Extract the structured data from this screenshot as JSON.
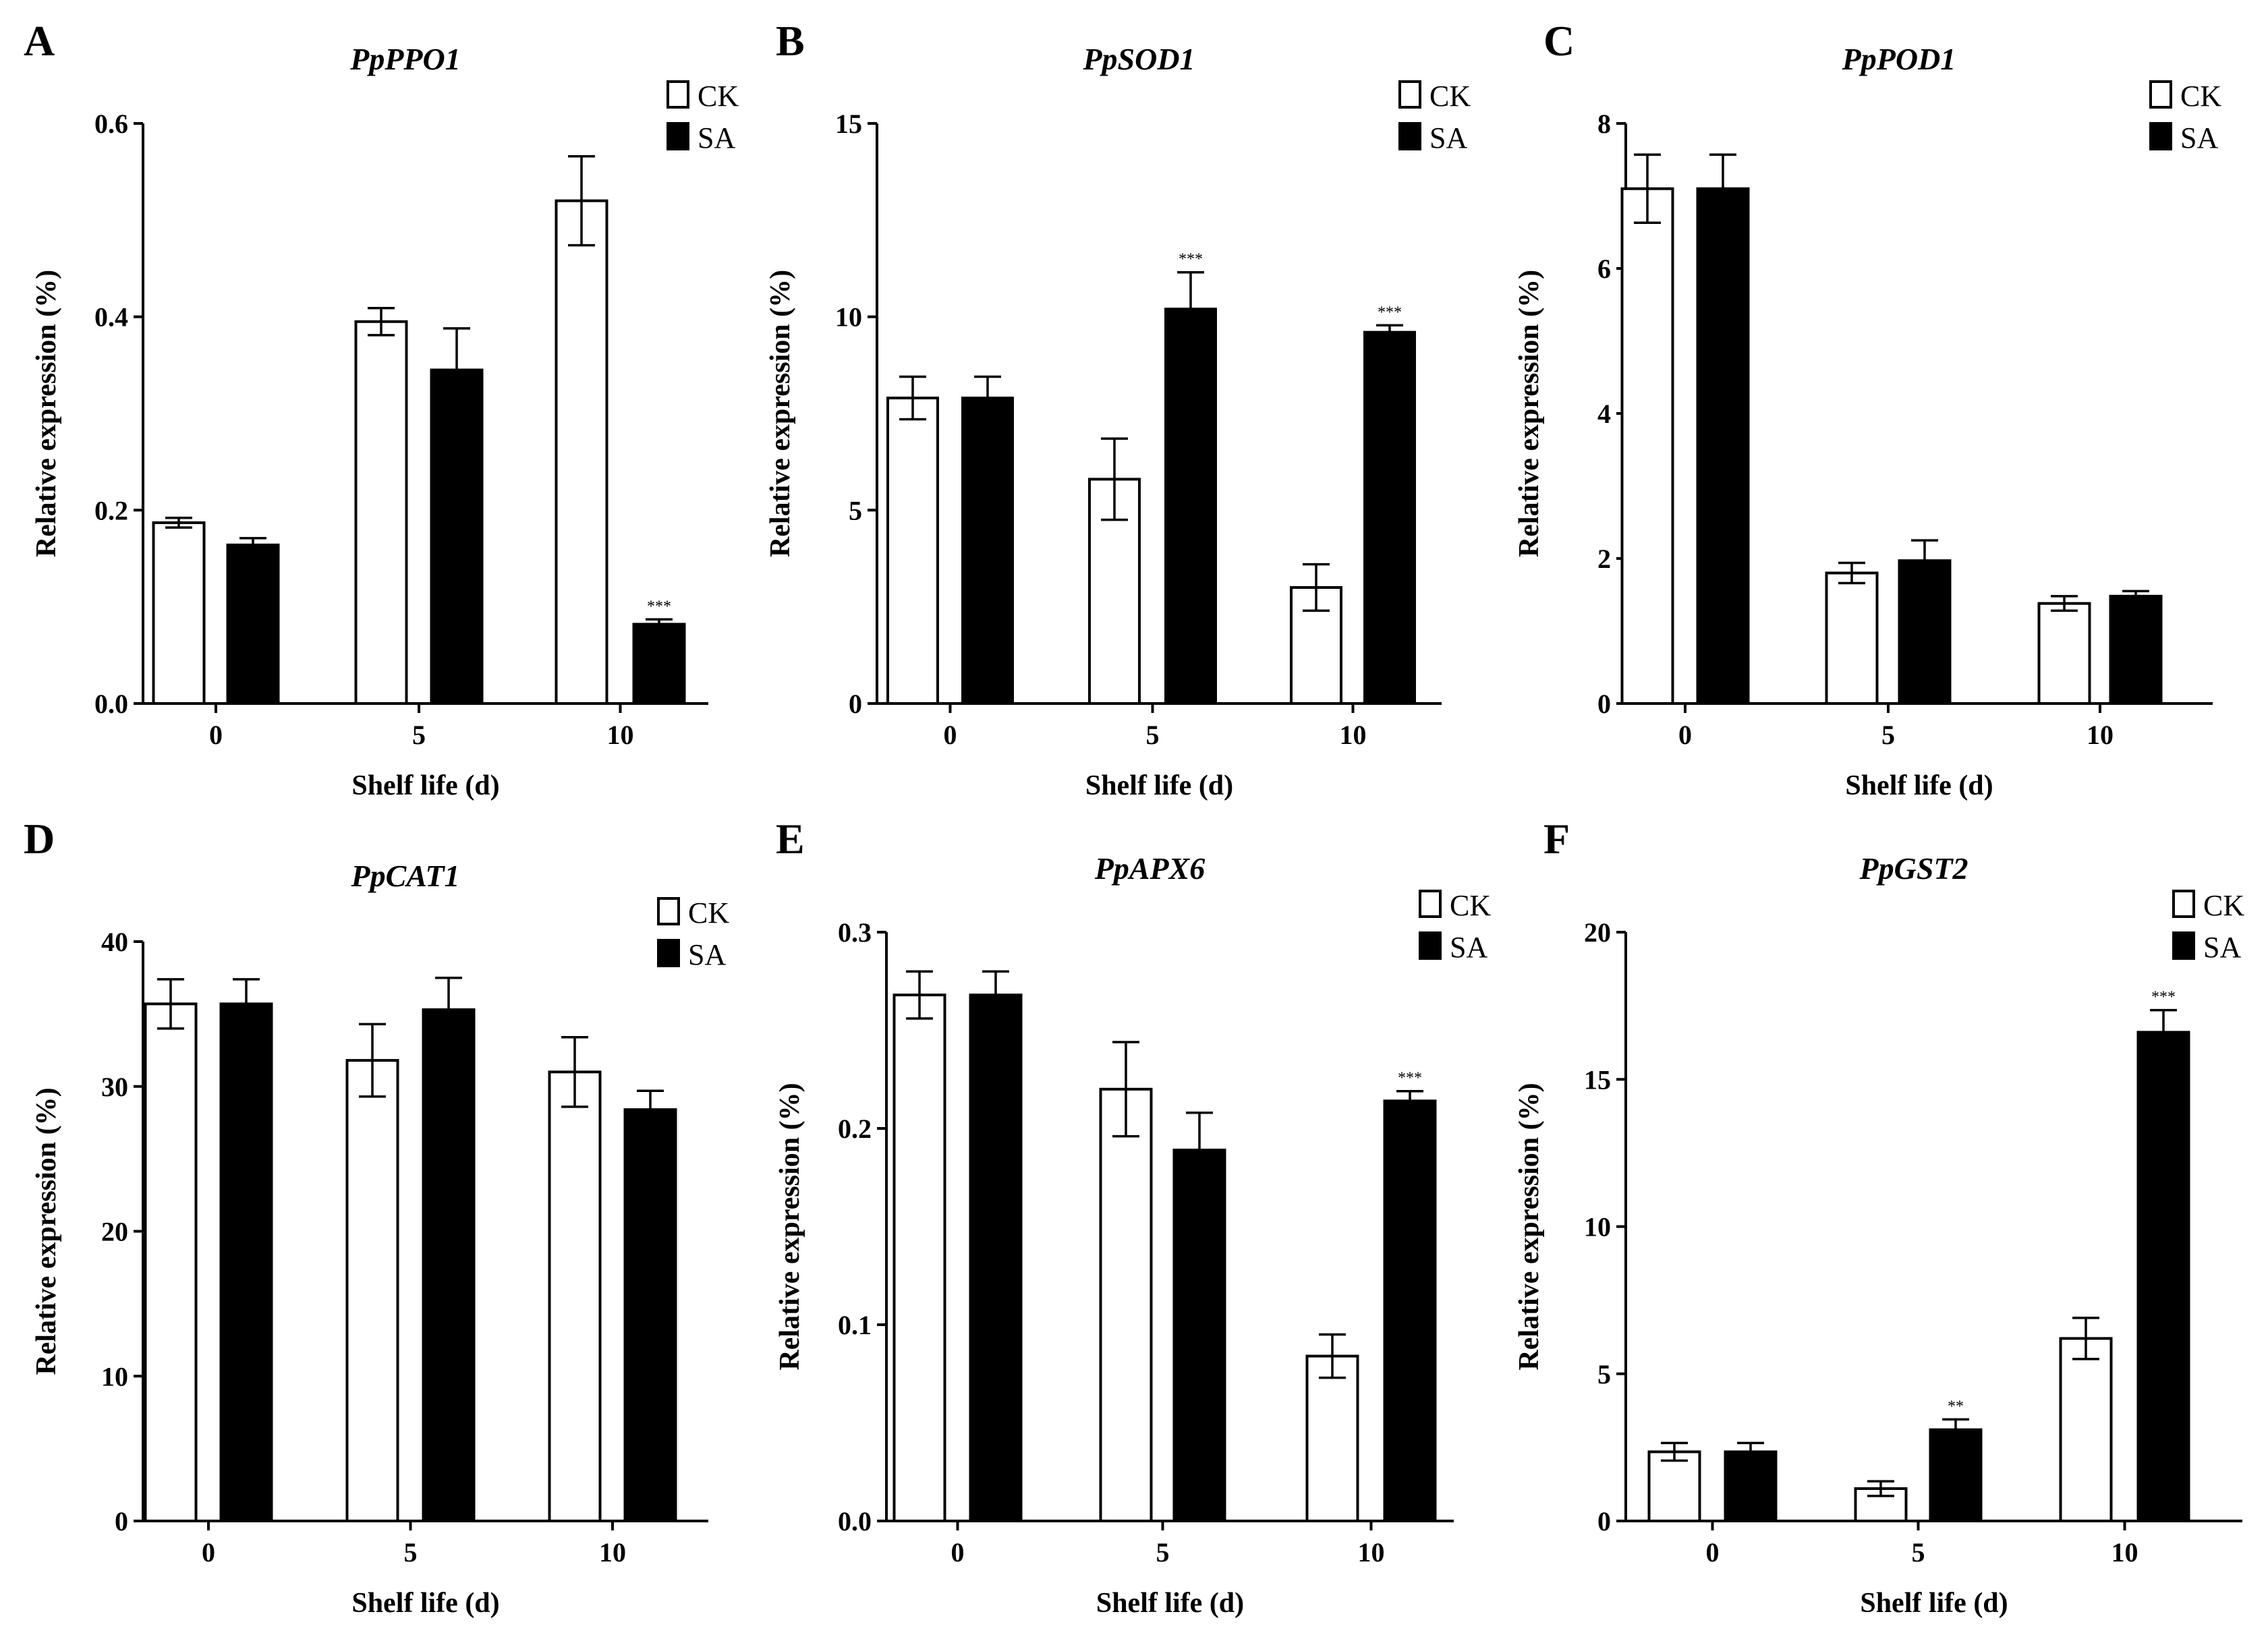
{
  "figure": {
    "legend": {
      "ck": "CK",
      "sa": "SA"
    },
    "x_axis_label": "Shelf life (d)",
    "y_axis_label": "Relative expression (%)"
  },
  "chart_data": [
    {
      "panel": "A",
      "type": "bar",
      "title": "PpPPO1",
      "xlabel": "Shelf life (d)",
      "ylabel": "Relative expression (%)",
      "categories": [
        "0",
        "5",
        "10"
      ],
      "ylim": [
        0,
        0.6
      ],
      "yticks": [
        "0.0",
        "0.2",
        "0.4",
        "0.6"
      ],
      "ytick_values": [
        0,
        0.2,
        0.4,
        0.6
      ],
      "series": [
        {
          "name": "CK",
          "values": [
            0.187,
            0.395,
            0.52
          ],
          "errors": [
            0.005,
            0.014,
            0.046
          ],
          "sig": [
            "",
            "",
            ""
          ]
        },
        {
          "name": "SA",
          "values": [
            0.164,
            0.345,
            0.082
          ],
          "errors": [
            0.007,
            0.043,
            0.005
          ],
          "sig": [
            "",
            "",
            "***"
          ]
        }
      ],
      "legend_position": "top-right"
    },
    {
      "panel": "B",
      "type": "bar",
      "title": "PpSOD1",
      "xlabel": "Shelf life (d)",
      "ylabel": "Relative expression (%)",
      "categories": [
        "0",
        "5",
        "10"
      ],
      "ylim": [
        0,
        15
      ],
      "yticks": [
        "0",
        "5",
        "10",
        "15"
      ],
      "ytick_values": [
        0,
        5,
        10,
        15
      ],
      "series": [
        {
          "name": "CK",
          "values": [
            7.9,
            5.8,
            3.0
          ],
          "errors": [
            0.55,
            1.05,
            0.6
          ],
          "sig": [
            "",
            "",
            ""
          ]
        },
        {
          "name": "SA",
          "values": [
            7.9,
            10.2,
            9.6
          ],
          "errors": [
            0.55,
            0.95,
            0.18
          ],
          "sig": [
            "",
            "***",
            "***"
          ]
        }
      ],
      "legend_position": "top-right"
    },
    {
      "panel": "C",
      "type": "bar",
      "title": "PpPOD1",
      "xlabel": "Shelf life (d)",
      "ylabel": "Relative expression (%)",
      "categories": [
        "0",
        "5",
        "10"
      ],
      "ylim": [
        0,
        8
      ],
      "yticks": [
        "0",
        "2",
        "4",
        "6",
        "8"
      ],
      "ytick_values": [
        0,
        2,
        4,
        6,
        8
      ],
      "series": [
        {
          "name": "CK",
          "values": [
            7.1,
            1.8,
            1.38
          ],
          "errors": [
            0.47,
            0.14,
            0.1
          ],
          "sig": [
            "",
            "",
            ""
          ]
        },
        {
          "name": "SA",
          "values": [
            7.1,
            1.97,
            1.48
          ],
          "errors": [
            0.47,
            0.28,
            0.07
          ],
          "sig": [
            "",
            "",
            ""
          ]
        }
      ],
      "legend_position": "top-right"
    },
    {
      "panel": "D",
      "type": "bar",
      "title": "PpCAT1",
      "xlabel": "Shelf life (d)",
      "ylabel": "Relative expression (%)",
      "categories": [
        "0",
        "5",
        "10"
      ],
      "ylim": [
        0,
        40
      ],
      "yticks": [
        "0",
        "10",
        "20",
        "30",
        "40"
      ],
      "ytick_values": [
        0,
        10,
        20,
        30,
        40
      ],
      "series": [
        {
          "name": "CK",
          "values": [
            35.7,
            31.8,
            31.0
          ],
          "errors": [
            1.7,
            2.5,
            2.4
          ],
          "sig": [
            "",
            "",
            ""
          ]
        },
        {
          "name": "SA",
          "values": [
            35.7,
            35.3,
            28.4
          ],
          "errors": [
            1.7,
            2.2,
            1.3
          ],
          "sig": [
            "",
            "",
            ""
          ]
        }
      ],
      "legend_position": "top-right"
    },
    {
      "panel": "E",
      "type": "bar",
      "title": "PpAPX6",
      "xlabel": "Shelf life (d)",
      "ylabel": "Relative expression (%)",
      "categories": [
        "0",
        "5",
        "10"
      ],
      "ylim": [
        0,
        0.3
      ],
      "yticks": [
        "0.0",
        "0.1",
        "0.2",
        "0.3"
      ],
      "ytick_values": [
        0,
        0.1,
        0.2,
        0.3
      ],
      "series": [
        {
          "name": "CK",
          "values": [
            0.268,
            0.22,
            0.084
          ],
          "errors": [
            0.012,
            0.024,
            0.011
          ],
          "sig": [
            "",
            "",
            ""
          ]
        },
        {
          "name": "SA",
          "values": [
            0.268,
            0.189,
            0.214
          ],
          "errors": [
            0.012,
            0.019,
            0.005
          ],
          "sig": [
            "",
            "",
            "***"
          ]
        }
      ],
      "legend_position": "top-right"
    },
    {
      "panel": "F",
      "type": "bar",
      "title": "PpGST2",
      "xlabel": "Shelf life (d)",
      "ylabel": "Relative expression (%)",
      "categories": [
        "0",
        "5",
        "10"
      ],
      "ylim": [
        0,
        20
      ],
      "yticks": [
        "0",
        "5",
        "10",
        "15",
        "20"
      ],
      "ytick_values": [
        0,
        5,
        10,
        15,
        20
      ],
      "series": [
        {
          "name": "CK",
          "values": [
            2.35,
            1.1,
            6.2
          ],
          "errors": [
            0.3,
            0.25,
            0.7
          ],
          "sig": [
            "",
            "",
            ""
          ]
        },
        {
          "name": "SA",
          "values": [
            2.35,
            3.1,
            16.6
          ],
          "errors": [
            0.3,
            0.35,
            0.75
          ],
          "sig": [
            "",
            "**",
            "***"
          ]
        }
      ],
      "legend_position": "top-right"
    }
  ]
}
